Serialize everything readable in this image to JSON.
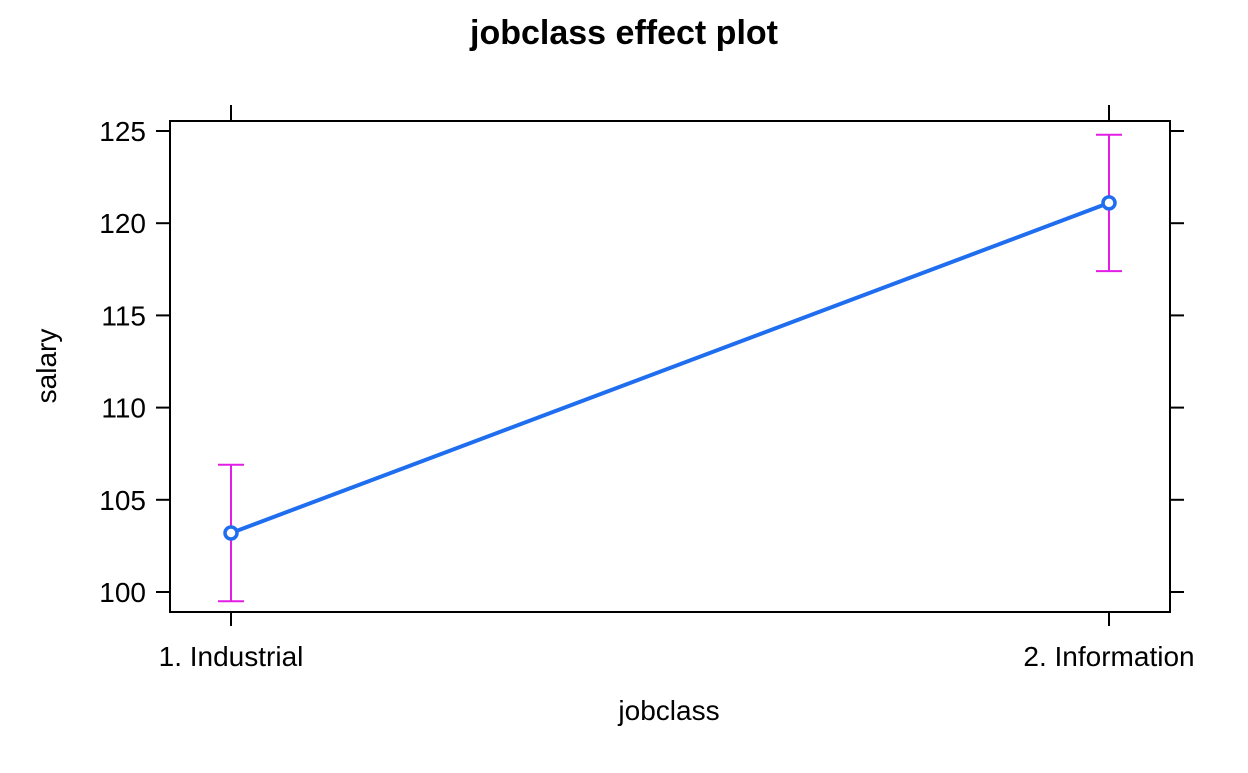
{
  "chart_data": {
    "type": "line",
    "title": "jobclass effect plot",
    "xlabel": "jobclass",
    "ylabel": "salary",
    "categories": [
      "1. Industrial",
      "2. Information"
    ],
    "series": [
      {
        "values": [
          103.2,
          121.1
        ],
        "lower": [
          99.5,
          117.4
        ],
        "upper": [
          106.9,
          124.8
        ]
      }
    ],
    "yticks": [
      "100",
      "105",
      "110",
      "115",
      "120",
      "125"
    ],
    "ylim": [
      98.9,
      125.5
    ],
    "grid": false,
    "legend": "none",
    "colors": {
      "line": "#1f6ef0",
      "errorbar": "#e21ee6",
      "frame": "#000000"
    }
  }
}
